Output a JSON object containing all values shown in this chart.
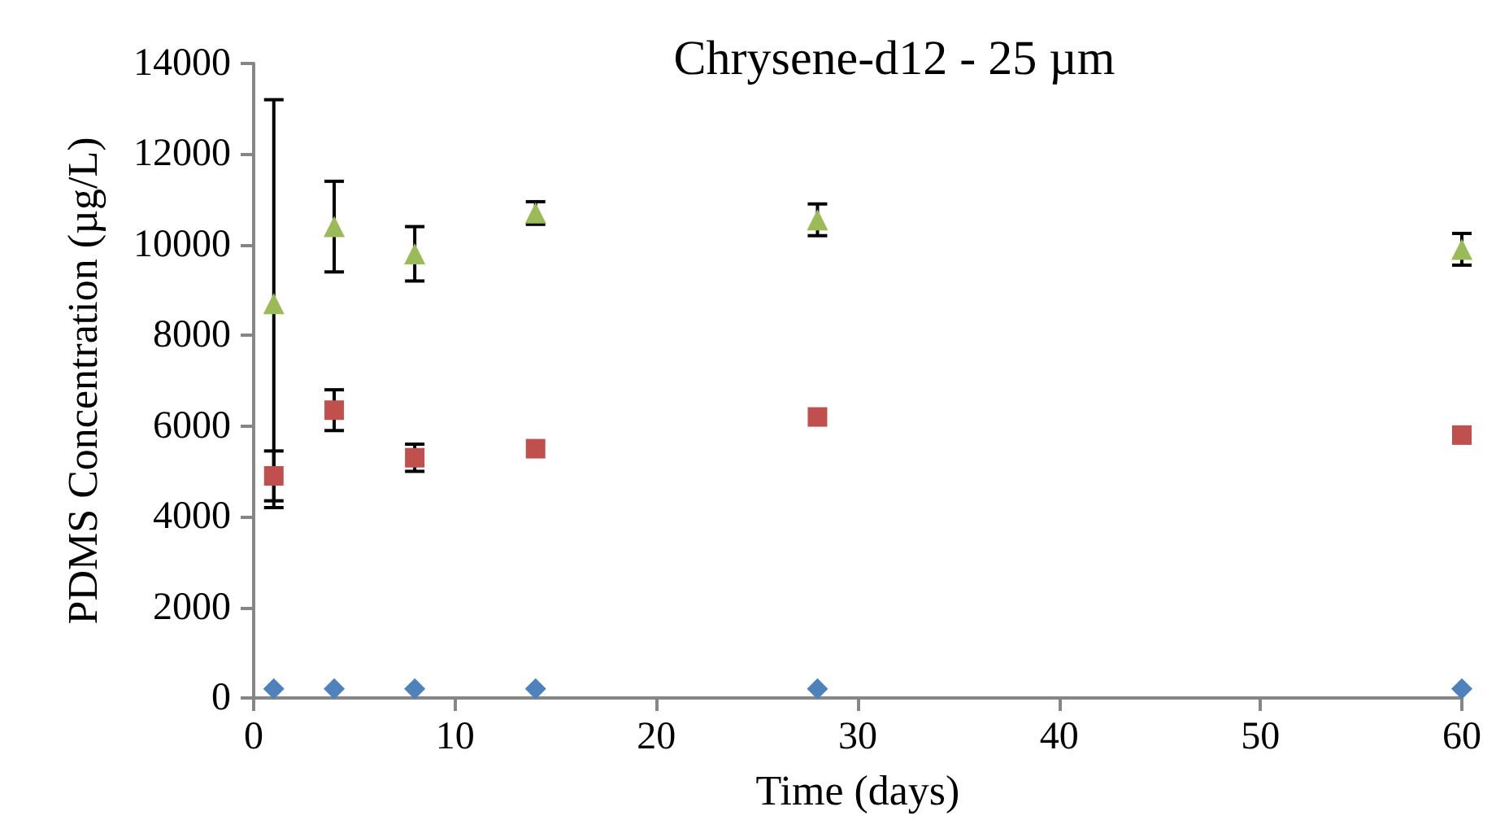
{
  "chart_data": {
    "type": "scatter",
    "title": "Chrysene-d12 - 25 µm",
    "xlabel": "Time (days)",
    "ylabel": "PDMS Concentration (µg/L)",
    "x": [
      1,
      4,
      8,
      14,
      28,
      60
    ],
    "series": [
      {
        "color": "#4f81bd",
        "marker": "diamond",
        "values": [
          200,
          200,
          200,
          200,
          200,
          200
        ]
      },
      {
        "color": "#c0504d",
        "marker": "square",
        "values": [
          4900,
          6350,
          5300,
          5500,
          6200,
          5800
        ],
        "errors": [
          550,
          450,
          300,
          null,
          null,
          null
        ]
      },
      {
        "color": "#9bbb59",
        "marker": "triangle",
        "values": [
          8700,
          10400,
          9800,
          10700,
          10550,
          9900
        ],
        "errors": [
          4500,
          1000,
          600,
          250,
          350,
          350
        ]
      }
    ],
    "xlim": [
      0,
      60
    ],
    "xticks": [
      0,
      10,
      20,
      30,
      40,
      50,
      60
    ],
    "ylim": [
      0,
      14000
    ],
    "yticks": [
      0,
      2000,
      4000,
      6000,
      8000,
      10000,
      12000,
      14000
    ],
    "grid": false
  }
}
